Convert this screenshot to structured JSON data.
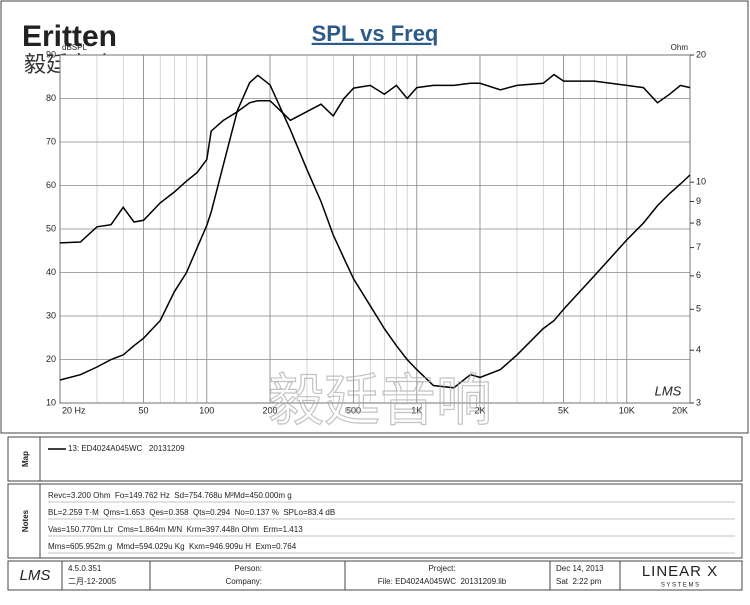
{
  "header": {
    "logo": "Eritten",
    "logo_cn": "毅廷音响"
  },
  "watermark": "毅廷音响",
  "plot_mark": "LMS",
  "chart_data": {
    "type": "line",
    "title": "SPL vs Freq",
    "y_label": "dBSPL",
    "y2_label": "Ohm",
    "x": [
      20,
      25,
      30,
      35,
      40,
      45,
      50,
      60,
      70,
      80,
      90,
      100,
      105,
      120,
      140,
      160,
      175,
      200,
      250,
      300,
      350,
      400,
      450,
      500,
      600,
      700,
      800,
      900,
      1000,
      1200,
      1500,
      1800,
      2000,
      2500,
      3000,
      4000,
      4500,
      5000,
      7000,
      10000,
      12000,
      14000,
      16000,
      18000,
      20000
    ],
    "series": [
      {
        "name": "13: ED4024A045WC   20131209",
        "color": "#000000",
        "axis": "y",
        "values": [
          46.8,
          47,
          50.5,
          51,
          55,
          51.6,
          52,
          56,
          58.5,
          61,
          63,
          66,
          72.5,
          75,
          77,
          79,
          79.5,
          79.5,
          75,
          77,
          78.7,
          76,
          80,
          82.4,
          83,
          81,
          83,
          80,
          82.5,
          83,
          83,
          83.5,
          83.5,
          82,
          83,
          83.5,
          85.5,
          84,
          84,
          83,
          82.5,
          79,
          81,
          83,
          82.5
        ]
      },
      {
        "color": "#000000",
        "axis": "y2",
        "values": [
          3.4,
          3.5,
          3.65,
          3.8,
          3.9,
          4.1,
          4.27,
          4.7,
          5.5,
          6.1,
          7,
          7.9,
          8.5,
          11,
          14.8,
          17.2,
          17.9,
          17,
          13.3,
          10.7,
          9,
          7.5,
          6.6,
          5.9,
          5.1,
          4.5,
          4.1,
          3.8,
          3.6,
          3.3,
          3.26,
          3.5,
          3.45,
          3.6,
          3.9,
          4.5,
          4.7,
          5,
          6,
          7.3,
          8,
          8.8,
          9.4,
          9.9,
          10.4
        ]
      }
    ],
    "xscale": "log",
    "xlim": [
      20,
      20000
    ],
    "xticks": [
      {
        "value": 20,
        "label": "20 Hz"
      },
      50,
      100,
      200,
      500,
      {
        "value": 1000,
        "label": "1K"
      },
      {
        "value": 2000,
        "label": "2K"
      },
      {
        "value": 5000,
        "label": "5K"
      },
      {
        "value": 10000,
        "label": "10K"
      },
      {
        "value": 20000,
        "label": "20K"
      }
    ],
    "ylim": [
      10,
      90
    ],
    "yticks": [
      10,
      20,
      30,
      40,
      50,
      60,
      70,
      80,
      90
    ],
    "y2scale": "log",
    "y2lim": [
      3,
      20
    ],
    "y2ticks": [
      3,
      4,
      5,
      6,
      7,
      8,
      9,
      10,
      20
    ],
    "grid": true
  },
  "map": {
    "side_label": "Map"
  },
  "notes": {
    "side_label": "Notes",
    "lines": [
      "Revc=3.200 Ohm  Fo=149.762 Hz  Sd=754.768u M²Md=450.000m g",
      "BL=2.259 T·M  Qms=1.653  Qes=0.358  Qts=0.294  No=0.137 %  SPLo=83.4 dB",
      "Vas=150.770m Ltr  Cms=1.864m M/N  Krm=397.448n Ohm  Erm=1.413",
      "Mms=605.952m g  Mmd=594.029u Kg  Kxm=946.909u H  Exm=0.764"
    ]
  },
  "footer": {
    "lms": "LMS",
    "version": "4.5.0.351",
    "build_date": "二月-12-2005",
    "person": "Person:",
    "company": "Company:",
    "project": "Project:",
    "file": "File: ED4024A045WC  20131209.lib",
    "date": "Dec 14, 2013",
    "time": "Sat  2:22 pm",
    "brand": "LINEAR X",
    "brand_sub": "S Y S T E M S"
  }
}
